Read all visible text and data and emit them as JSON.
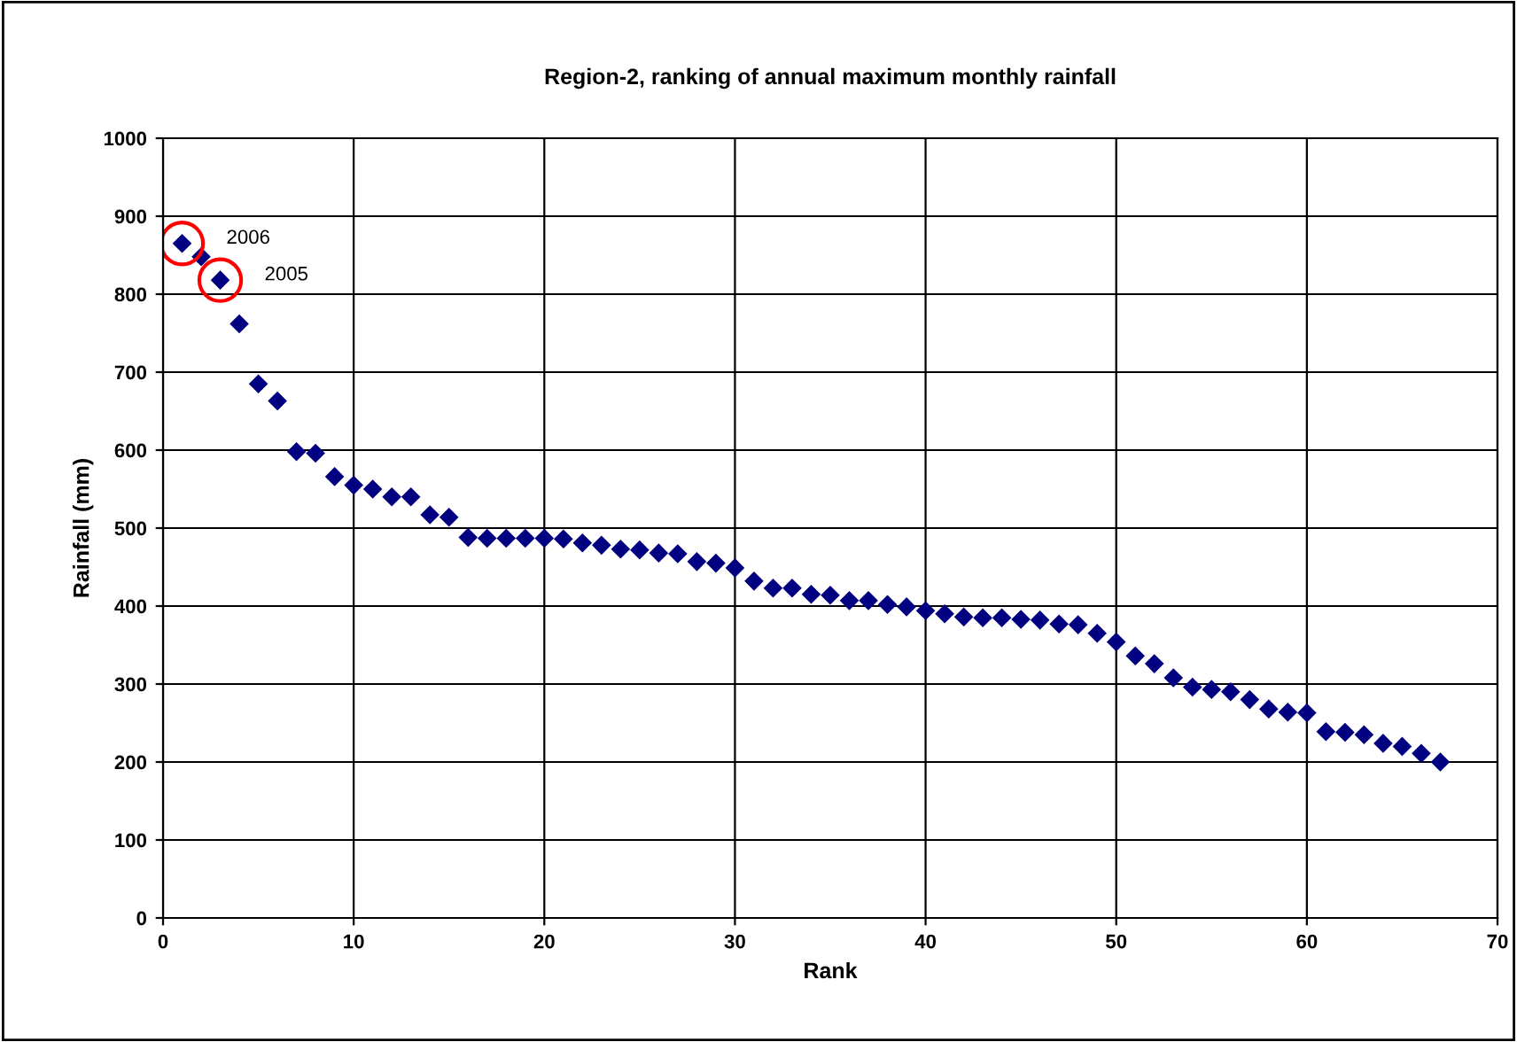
{
  "chart_data": {
    "type": "scatter",
    "title": "Region-2, ranking of annual maximum monthly rainfall",
    "xlabel": "Rank",
    "ylabel": "Rainfall (mm)",
    "x": [
      1,
      2,
      3,
      4,
      5,
      6,
      7,
      8,
      9,
      10,
      11,
      12,
      13,
      14,
      15,
      16,
      17,
      18,
      19,
      20,
      21,
      22,
      23,
      24,
      25,
      26,
      27,
      28,
      29,
      30,
      31,
      32,
      33,
      34,
      35,
      36,
      37,
      38,
      39,
      40,
      41,
      42,
      43,
      44,
      45,
      46,
      47,
      48,
      49,
      50,
      51,
      52,
      53,
      54,
      55,
      56,
      57,
      58,
      59,
      60,
      61,
      62,
      63,
      64,
      65,
      66,
      67
    ],
    "series": [
      {
        "color": "#000080",
        "values": [
          865,
          848,
          818,
          762,
          685,
          663,
          598,
          596,
          566,
          555,
          550,
          540,
          540,
          517,
          514,
          488,
          487,
          487,
          487,
          487,
          486,
          481,
          478,
          473,
          472,
          468,
          467,
          457,
          455,
          449,
          432,
          423,
          423,
          415,
          414,
          407,
          407,
          402,
          399,
          394,
          390,
          386,
          385,
          385,
          383,
          382,
          377,
          376,
          365,
          354,
          336,
          326,
          308,
          296,
          293,
          290,
          280,
          268,
          264,
          263,
          239,
          238,
          235,
          224,
          220,
          211,
          200
        ]
      }
    ],
    "marker": "diamond",
    "xlim": [
      0,
      70
    ],
    "ylim": [
      0,
      1000
    ],
    "xticks": [
      0,
      10,
      20,
      30,
      40,
      50,
      60,
      70
    ],
    "yticks": [
      0,
      100,
      200,
      300,
      400,
      500,
      600,
      700,
      800,
      900,
      1000
    ],
    "grid": true,
    "annotations": [
      {
        "text": "2006",
        "x": 1,
        "y": 865
      },
      {
        "text": "2005",
        "x": 3,
        "y": 818
      }
    ]
  }
}
